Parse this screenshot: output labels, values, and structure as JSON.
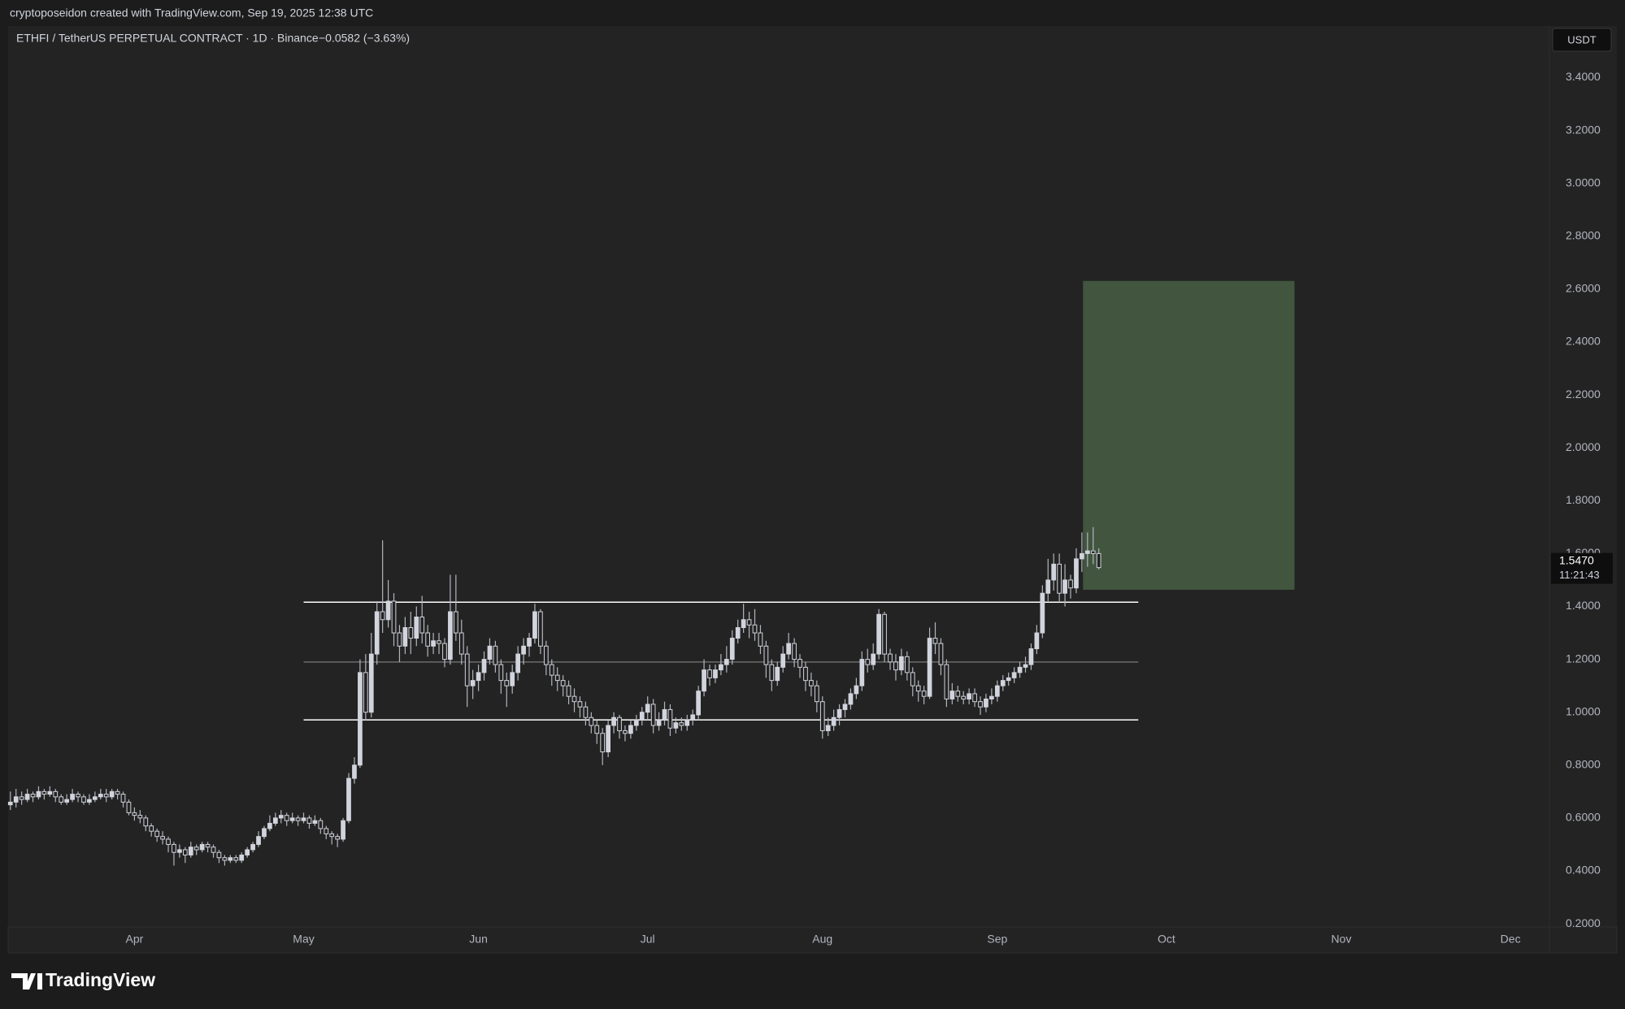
{
  "header": {
    "credit": "cryptoposeidon created with TradingView.com, Sep 19, 2025 12:38 UTC",
    "symbol": "ETHFI / TetherUS PERPETUAL CONTRACT · 1D · Binance",
    "change": "−0.0582 (−3.63%)"
  },
  "chart_data": {
    "type": "candlestick",
    "currency": "USDT",
    "up_color": "#d1d4dc",
    "down_color": "#232323",
    "wick_color": "#b2b5be",
    "open": [
      0.65,
      0.66,
      0.68,
      0.67,
      0.69,
      0.68,
      0.7,
      0.69,
      0.7,
      0.68,
      0.66,
      0.67,
      0.69,
      0.68,
      0.66,
      0.67,
      0.68,
      0.69,
      0.68,
      0.7,
      0.69,
      0.66,
      0.62,
      0.61,
      0.6,
      0.57,
      0.55,
      0.53,
      0.52,
      0.5,
      0.47,
      0.48,
      0.46,
      0.49,
      0.48,
      0.5,
      0.49,
      0.47,
      0.45,
      0.44,
      0.45,
      0.44,
      0.46,
      0.48,
      0.5,
      0.53,
      0.56,
      0.58,
      0.6,
      0.61,
      0.59,
      0.6,
      0.59,
      0.6,
      0.58,
      0.59,
      0.56,
      0.54,
      0.53,
      0.52,
      0.59,
      0.75,
      0.8,
      1.15,
      1.0,
      1.22,
      1.38,
      1.35,
      1.42,
      1.3,
      1.25,
      1.32,
      1.28,
      1.36,
      1.3,
      1.25,
      1.27,
      1.26,
      1.2,
      1.38,
      1.3,
      1.22,
      1.1,
      1.12,
      1.15,
      1.2,
      1.25,
      1.18,
      1.12,
      1.1,
      1.15,
      1.22,
      1.25,
      1.28,
      1.38,
      1.25,
      1.18,
      1.14,
      1.12,
      1.1,
      1.06,
      1.04,
      1.02,
      0.98,
      0.95,
      0.92,
      0.85,
      0.95,
      0.98,
      0.93,
      0.92,
      0.95,
      0.97,
      1.0,
      1.03,
      0.95,
      0.97,
      1.01,
      0.94,
      0.96,
      0.95,
      0.97,
      0.99,
      1.08,
      1.16,
      1.13,
      1.16,
      1.18,
      1.2,
      1.28,
      1.32,
      1.35,
      1.33,
      1.3,
      1.25,
      1.18,
      1.12,
      1.17,
      1.22,
      1.26,
      1.2,
      1.17,
      1.12,
      1.1,
      1.04,
      0.93,
      0.95,
      0.98,
      1.01,
      1.03,
      1.07,
      1.1,
      1.2,
      1.18,
      1.22,
      1.37,
      1.22,
      1.19,
      1.16,
      1.21,
      1.15,
      1.1,
      1.08,
      1.06,
      1.28,
      1.26,
      1.18,
      1.05,
      1.08,
      1.06,
      1.05,
      1.07,
      1.04,
      1.02,
      1.05,
      1.06,
      1.1,
      1.12,
      1.13,
      1.15,
      1.17,
      1.18,
      1.24,
      1.3,
      1.45,
      1.5,
      1.56,
      1.45,
      1.5,
      1.47,
      1.58,
      1.6,
      1.61,
      1.6
    ],
    "high": [
      0.7,
      0.71,
      0.7,
      0.71,
      0.7,
      0.72,
      0.71,
      0.72,
      0.71,
      0.69,
      0.69,
      0.71,
      0.7,
      0.69,
      0.69,
      0.7,
      0.71,
      0.71,
      0.71,
      0.71,
      0.7,
      0.67,
      0.64,
      0.63,
      0.61,
      0.58,
      0.56,
      0.55,
      0.53,
      0.51,
      0.5,
      0.49,
      0.51,
      0.5,
      0.51,
      0.51,
      0.5,
      0.48,
      0.46,
      0.46,
      0.46,
      0.47,
      0.49,
      0.51,
      0.55,
      0.57,
      0.61,
      0.62,
      0.63,
      0.62,
      0.62,
      0.61,
      0.62,
      0.61,
      0.61,
      0.6,
      0.57,
      0.55,
      0.54,
      0.6,
      0.77,
      0.83,
      1.2,
      1.22,
      1.3,
      1.42,
      1.65,
      1.5,
      1.45,
      1.33,
      1.36,
      1.38,
      1.4,
      1.44,
      1.33,
      1.3,
      1.3,
      1.28,
      1.52,
      1.52,
      1.35,
      1.25,
      1.16,
      1.18,
      1.23,
      1.28,
      1.27,
      1.2,
      1.15,
      1.18,
      1.25,
      1.28,
      1.3,
      1.41,
      1.39,
      1.27,
      1.2,
      1.17,
      1.14,
      1.12,
      1.09,
      1.06,
      1.04,
      1.0,
      0.97,
      0.94,
      0.97,
      1.0,
      0.99,
      0.95,
      0.97,
      0.99,
      1.02,
      1.06,
      1.05,
      1.0,
      1.04,
      1.03,
      0.98,
      0.98,
      0.99,
      1.01,
      1.1,
      1.2,
      1.18,
      1.18,
      1.22,
      1.25,
      1.31,
      1.35,
      1.41,
      1.38,
      1.39,
      1.33,
      1.27,
      1.2,
      1.19,
      1.25,
      1.3,
      1.28,
      1.22,
      1.19,
      1.15,
      1.12,
      1.06,
      0.98,
      1.01,
      1.03,
      1.05,
      1.09,
      1.13,
      1.23,
      1.24,
      1.26,
      1.39,
      1.38,
      1.24,
      1.22,
      1.24,
      1.23,
      1.17,
      1.12,
      1.1,
      1.32,
      1.34,
      1.28,
      1.2,
      1.11,
      1.1,
      1.08,
      1.09,
      1.09,
      1.06,
      1.07,
      1.09,
      1.12,
      1.14,
      1.15,
      1.17,
      1.19,
      1.21,
      1.26,
      1.33,
      1.48,
      1.58,
      1.6,
      1.6,
      1.56,
      1.52,
      1.62,
      1.68,
      1.68,
      1.7,
      1.62
    ],
    "low": [
      0.63,
      0.64,
      0.65,
      0.66,
      0.66,
      0.67,
      0.67,
      0.68,
      0.66,
      0.65,
      0.65,
      0.66,
      0.66,
      0.65,
      0.65,
      0.66,
      0.67,
      0.66,
      0.67,
      0.67,
      0.64,
      0.61,
      0.59,
      0.58,
      0.55,
      0.53,
      0.51,
      0.5,
      0.47,
      0.42,
      0.45,
      0.43,
      0.45,
      0.46,
      0.47,
      0.47,
      0.45,
      0.43,
      0.42,
      0.43,
      0.43,
      0.43,
      0.45,
      0.47,
      0.49,
      0.52,
      0.55,
      0.57,
      0.58,
      0.57,
      0.58,
      0.57,
      0.58,
      0.56,
      0.57,
      0.54,
      0.52,
      0.5,
      0.49,
      0.51,
      0.58,
      0.73,
      0.79,
      0.97,
      0.98,
      1.18,
      1.3,
      1.32,
      1.25,
      1.19,
      1.22,
      1.22,
      1.25,
      1.26,
      1.21,
      1.22,
      1.22,
      1.17,
      1.18,
      1.27,
      1.18,
      1.02,
      1.05,
      1.08,
      1.12,
      1.18,
      1.15,
      1.07,
      1.02,
      1.07,
      1.12,
      1.18,
      1.21,
      1.26,
      1.22,
      1.14,
      1.1,
      1.08,
      1.06,
      1.03,
      1.0,
      0.98,
      0.95,
      0.92,
      0.88,
      0.8,
      0.83,
      0.92,
      0.9,
      0.89,
      0.9,
      0.93,
      0.95,
      0.97,
      0.92,
      0.93,
      0.95,
      0.91,
      0.92,
      0.93,
      0.93,
      0.95,
      0.97,
      1.06,
      1.1,
      1.11,
      1.14,
      1.15,
      1.18,
      1.26,
      1.3,
      1.28,
      1.27,
      1.22,
      1.13,
      1.08,
      1.1,
      1.15,
      1.2,
      1.17,
      1.13,
      1.08,
      1.06,
      1.0,
      0.9,
      0.91,
      0.93,
      0.95,
      0.98,
      1.01,
      1.05,
      1.08,
      1.15,
      1.16,
      1.2,
      1.19,
      1.16,
      1.12,
      1.14,
      1.12,
      1.06,
      1.04,
      1.03,
      1.05,
      1.22,
      1.14,
      1.02,
      1.03,
      1.04,
      1.03,
      1.03,
      1.02,
      0.99,
      1.0,
      1.03,
      1.04,
      1.08,
      1.1,
      1.11,
      1.13,
      1.15,
      1.16,
      1.22,
      1.28,
      1.42,
      1.46,
      1.42,
      1.4,
      1.43,
      1.45,
      1.53,
      1.55,
      1.56,
      1.54
    ],
    "close": [
      0.66,
      0.68,
      0.67,
      0.69,
      0.68,
      0.7,
      0.69,
      0.7,
      0.68,
      0.66,
      0.67,
      0.69,
      0.68,
      0.66,
      0.67,
      0.68,
      0.69,
      0.68,
      0.7,
      0.69,
      0.66,
      0.62,
      0.61,
      0.6,
      0.57,
      0.55,
      0.53,
      0.52,
      0.5,
      0.47,
      0.48,
      0.46,
      0.49,
      0.48,
      0.5,
      0.49,
      0.47,
      0.45,
      0.44,
      0.45,
      0.44,
      0.46,
      0.48,
      0.5,
      0.53,
      0.56,
      0.58,
      0.6,
      0.61,
      0.59,
      0.6,
      0.59,
      0.6,
      0.58,
      0.59,
      0.56,
      0.54,
      0.53,
      0.52,
      0.59,
      0.75,
      0.8,
      1.15,
      1.0,
      1.22,
      1.38,
      1.35,
      1.42,
      1.3,
      1.25,
      1.32,
      1.28,
      1.36,
      1.3,
      1.25,
      1.27,
      1.26,
      1.2,
      1.38,
      1.3,
      1.22,
      1.1,
      1.12,
      1.15,
      1.2,
      1.25,
      1.18,
      1.12,
      1.1,
      1.15,
      1.22,
      1.25,
      1.28,
      1.38,
      1.25,
      1.18,
      1.14,
      1.12,
      1.1,
      1.06,
      1.04,
      1.02,
      0.98,
      0.95,
      0.92,
      0.85,
      0.95,
      0.98,
      0.93,
      0.92,
      0.95,
      0.97,
      1.0,
      1.03,
      0.95,
      0.97,
      1.01,
      0.94,
      0.96,
      0.95,
      0.97,
      0.99,
      1.08,
      1.16,
      1.13,
      1.16,
      1.18,
      1.2,
      1.28,
      1.32,
      1.35,
      1.33,
      1.3,
      1.25,
      1.18,
      1.12,
      1.17,
      1.22,
      1.26,
      1.2,
      1.17,
      1.12,
      1.1,
      1.04,
      0.93,
      0.95,
      0.98,
      1.01,
      1.03,
      1.07,
      1.1,
      1.2,
      1.18,
      1.22,
      1.37,
      1.22,
      1.19,
      1.16,
      1.21,
      1.15,
      1.1,
      1.08,
      1.06,
      1.28,
      1.26,
      1.18,
      1.05,
      1.08,
      1.06,
      1.05,
      1.07,
      1.04,
      1.02,
      1.05,
      1.06,
      1.1,
      1.12,
      1.13,
      1.15,
      1.17,
      1.18,
      1.24,
      1.3,
      1.45,
      1.5,
      1.56,
      1.45,
      1.5,
      1.47,
      1.58,
      1.6,
      1.61,
      1.6,
      1.547
    ],
    "xlim": [
      -0.4,
      272.9
    ],
    "xticks": [
      {
        "value": 22,
        "label": "Apr"
      },
      {
        "value": 52,
        "label": "May"
      },
      {
        "value": 83,
        "label": "Jun"
      },
      {
        "value": 113,
        "label": "Jul"
      },
      {
        "value": 144,
        "label": "Aug"
      },
      {
        "value": 175,
        "label": "Sep"
      },
      {
        "value": 205,
        "label": "Oct"
      },
      {
        "value": 236,
        "label": "Nov"
      },
      {
        "value": 266,
        "label": "Dec"
      }
    ],
    "ylim": [
      0.188,
      3.595
    ],
    "yticks": [
      {
        "value": 0.2,
        "label": "0.2000"
      },
      {
        "value": 0.4,
        "label": "0.4000"
      },
      {
        "value": 0.6,
        "label": "0.6000"
      },
      {
        "value": 0.8,
        "label": "0.8000"
      },
      {
        "value": 1.0,
        "label": "1.0000"
      },
      {
        "value": 1.2,
        "label": "1.2000"
      },
      {
        "value": 1.4,
        "label": "1.4000"
      },
      {
        "value": 1.6,
        "label": "1.6000"
      },
      {
        "value": 1.8,
        "label": "1.8000"
      },
      {
        "value": 2.0,
        "label": "2.0000"
      },
      {
        "value": 2.2,
        "label": "2.2000"
      },
      {
        "value": 2.4,
        "label": "2.4000"
      },
      {
        "value": 2.6,
        "label": "2.6000"
      },
      {
        "value": 2.8,
        "label": "2.8000"
      },
      {
        "value": 3.0,
        "label": "3.0000"
      },
      {
        "value": 3.2,
        "label": "3.2000"
      },
      {
        "value": 3.4,
        "label": "3.4000"
      }
    ],
    "grid": false,
    "levels": [
      {
        "value": 1.416,
        "x_start": 52,
        "x_end": 200,
        "color": "#ffffff"
      },
      {
        "value": 1.19,
        "x_start": 52,
        "x_end": 200,
        "color": "#6b6b6b"
      },
      {
        "value": 0.971,
        "x_start": 52,
        "x_end": 200,
        "color": "#ffffff"
      }
    ],
    "position": {
      "top": 2.631,
      "bottom": 1.463,
      "x_start": 190.2,
      "x_end": 227.7,
      "color": "#41553f"
    },
    "last_price_label": "1.5470",
    "countdown": "11:21:43"
  },
  "footer": {
    "brand": "TradingView"
  }
}
